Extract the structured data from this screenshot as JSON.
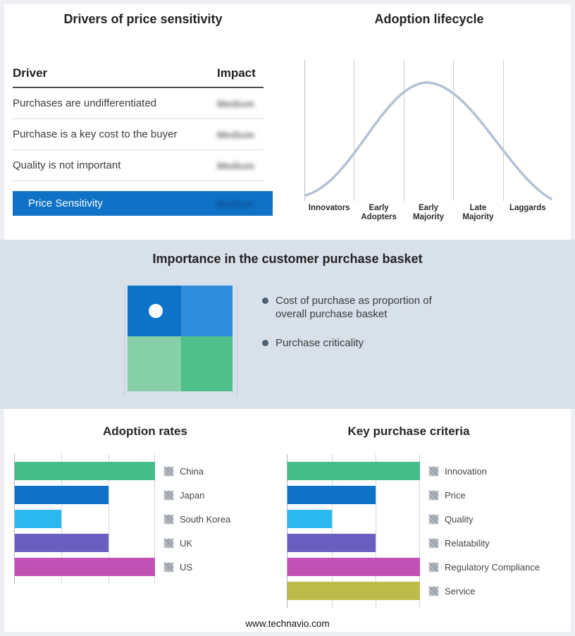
{
  "page": {
    "footer_text": "www.technavio.com",
    "background_color": "#edeff2",
    "panel_color": "#ffffff",
    "band_color": "#d8e0e9"
  },
  "drivers_table": {
    "title": "Drivers of price sensitivity",
    "columns": {
      "driver": "Driver",
      "impact": "Impact"
    },
    "impact_values_blurred": true,
    "rows": [
      {
        "driver": "Purchases are undifferentiated",
        "impact": "Medium"
      },
      {
        "driver": "Purchase is a key cost to the buyer",
        "impact": "Medium"
      },
      {
        "driver": "Quality is not important",
        "impact": "Medium"
      }
    ],
    "summary": {
      "label": "Price Sensitivity",
      "impact": "Medium",
      "background": "#0f72c6",
      "text_color": "#ffffff"
    }
  },
  "basket_panel": {
    "title": "Importance in the customer purchase basket",
    "bullets": [
      "Cost of purchase as proportion of overall purchase basket",
      "Purchase criticality"
    ],
    "quadrant_colors": {
      "top_left": "#0d73c8",
      "top_right": "#2e8edc",
      "bottom_left": "#86cfa8",
      "bottom_right": "#4fbf8c"
    },
    "marker": "white-dot-top-left"
  },
  "chart_data": [
    {
      "type": "bar",
      "orientation": "horizontal",
      "title": "Adoption rates",
      "categories": [
        "China",
        "Japan",
        "South Korea",
        "UK",
        "US"
      ],
      "values": [
        3,
        2,
        1,
        2,
        3
      ],
      "xlim": [
        0,
        3
      ],
      "grid": true,
      "legend_position": "right",
      "legend_swatches_blurred": true,
      "colors": [
        "#45bd8b",
        "#0f72c6",
        "#2cb9f2",
        "#6a5ec0",
        "#c251b5"
      ]
    },
    {
      "type": "bar",
      "orientation": "horizontal",
      "title": "Key purchase criteria",
      "categories": [
        "Innovation",
        "Price",
        "Quality",
        "Relatability",
        "Regulatory Compliance",
        "Service"
      ],
      "values": [
        3,
        2,
        1,
        2,
        3,
        3
      ],
      "xlim": [
        0,
        3
      ],
      "grid": true,
      "legend_position": "right",
      "legend_swatches_blurred": true,
      "colors": [
        "#45bd8b",
        "#0f72c6",
        "#2cb9f2",
        "#6a5ec0",
        "#c251b5",
        "#bdbb4a"
      ]
    },
    {
      "type": "line",
      "title": "Adoption lifecycle",
      "categories": [
        "Innovators",
        "Early Adopters",
        "Early Majority",
        "Late Majority",
        "Laggards"
      ],
      "values": [
        5,
        55,
        100,
        55,
        5
      ],
      "ylim": [
        0,
        100
      ],
      "grid": "vertical-only",
      "line_color": "#b3c1d3"
    }
  ]
}
